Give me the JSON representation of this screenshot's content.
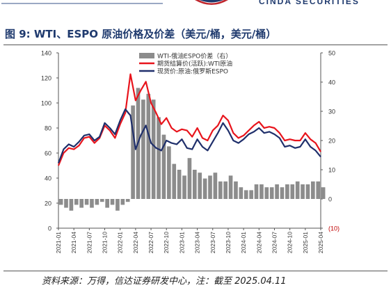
{
  "header": {
    "brand": "CINDA SECURITIES"
  },
  "figure": {
    "title": "图 9:  WTI、ESPO 原油价格及价差（美元/桶，美元/桶）"
  },
  "source": "资料来源：万得，信达证券研发中心，注：截至 2025.04.11",
  "chart_data": {
    "type": "line",
    "title": "",
    "x_range": [
      "2021-01",
      "2025-04"
    ],
    "x_tick_labels": [
      "2021-01",
      "2021-04",
      "2021-07",
      "2021-10",
      "2022-01",
      "2022-04",
      "2022-07",
      "2022-10",
      "2023-01",
      "2023-04",
      "2023-07",
      "2023-10",
      "2024-01",
      "2024-04",
      "2024-07",
      "2024-10",
      "2025-01",
      "2025-04"
    ],
    "ylim_left": [
      0,
      140
    ],
    "y_ticks_left": [
      0,
      20,
      40,
      60,
      80,
      100,
      120,
      140
    ],
    "ylim_right": [
      -10,
      50
    ],
    "y_ticks_right": [
      -10,
      0,
      10,
      20,
      30,
      40,
      50
    ],
    "y_tick_labels_right": [
      "(10)",
      "0",
      "10",
      "20",
      "30",
      "40",
      "50"
    ],
    "grid": false,
    "legend_position": "top-right",
    "series": [
      {
        "name": "WTI-俄油ESPO价差（右）",
        "type": "bar",
        "axis": "right",
        "color": "#8c8c8c",
        "x": [
          "2021-01",
          "2021-02",
          "2021-03",
          "2021-04",
          "2021-05",
          "2021-06",
          "2021-07",
          "2021-08",
          "2021-09",
          "2021-10",
          "2021-11",
          "2021-12",
          "2022-01",
          "2022-02",
          "2022-03",
          "2022-04",
          "2022-05",
          "2022-06",
          "2022-07",
          "2022-08",
          "2022-09",
          "2022-10",
          "2022-11",
          "2022-12",
          "2023-01",
          "2023-02",
          "2023-03",
          "2023-04",
          "2023-05",
          "2023-06",
          "2023-07",
          "2023-08",
          "2023-09",
          "2023-10",
          "2023-11",
          "2023-12",
          "2024-01",
          "2024-02",
          "2024-03",
          "2024-04",
          "2024-05",
          "2024-06",
          "2024-07",
          "2024-08",
          "2024-09",
          "2024-10",
          "2024-11",
          "2024-12",
          "2025-01",
          "2025-02",
          "2025-03",
          "2025-04"
        ],
        "values": [
          -2,
          -3,
          -4,
          -2,
          -3,
          -2,
          -3,
          -2,
          -1,
          -3,
          -2,
          -4,
          -2,
          -1,
          32,
          38,
          34,
          36,
          34,
          28,
          22,
          18,
          12,
          10,
          8,
          14,
          10,
          9,
          7,
          8,
          9,
          6,
          6,
          8,
          6,
          4,
          3,
          3,
          5,
          5,
          4,
          4,
          5,
          4,
          5,
          5,
          6,
          5,
          5,
          6,
          6,
          4
        ]
      },
      {
        "name": "期货结算价(活跃):WTI原油",
        "type": "line",
        "axis": "left",
        "color": "#e8141c",
        "x": [
          "2021-01",
          "2021-02",
          "2021-03",
          "2021-04",
          "2021-05",
          "2021-06",
          "2021-07",
          "2021-08",
          "2021-09",
          "2021-10",
          "2021-11",
          "2021-12",
          "2022-01",
          "2022-02",
          "2022-03",
          "2022-04",
          "2022-05",
          "2022-06",
          "2022-07",
          "2022-08",
          "2022-09",
          "2022-10",
          "2022-11",
          "2022-12",
          "2023-01",
          "2023-02",
          "2023-03",
          "2023-04",
          "2023-05",
          "2023-06",
          "2023-07",
          "2023-08",
          "2023-09",
          "2023-10",
          "2023-11",
          "2023-12",
          "2024-01",
          "2024-02",
          "2024-03",
          "2024-04",
          "2024-05",
          "2024-06",
          "2024-07",
          "2024-08",
          "2024-09",
          "2024-10",
          "2024-11",
          "2024-12",
          "2025-01",
          "2025-02",
          "2025-03",
          "2025-04"
        ],
        "values": [
          50,
          60,
          64,
          63,
          66,
          72,
          73,
          68,
          72,
          82,
          78,
          72,
          83,
          92,
          123,
          102,
          110,
          117,
          100,
          92,
          83,
          88,
          80,
          77,
          79,
          78,
          73,
          80,
          72,
          70,
          78,
          82,
          90,
          86,
          76,
          72,
          74,
          78,
          82,
          85,
          80,
          81,
          80,
          76,
          70,
          71,
          70,
          70,
          76,
          71,
          68,
          61
        ]
      },
      {
        "name": "现货价:原油:俄罗斯ESPO",
        "type": "line",
        "axis": "left",
        "color": "#1f2f6b",
        "x": [
          "2021-01",
          "2021-02",
          "2021-03",
          "2021-04",
          "2021-05",
          "2021-06",
          "2021-07",
          "2021-08",
          "2021-09",
          "2021-10",
          "2021-11",
          "2021-12",
          "2022-01",
          "2022-02",
          "2022-03",
          "2022-04",
          "2022-05",
          "2022-06",
          "2022-07",
          "2022-08",
          "2022-09",
          "2022-10",
          "2022-11",
          "2022-12",
          "2023-01",
          "2023-02",
          "2023-03",
          "2023-04",
          "2023-05",
          "2023-06",
          "2023-07",
          "2023-08",
          "2023-09",
          "2023-10",
          "2023-11",
          "2023-12",
          "2024-01",
          "2024-02",
          "2024-03",
          "2024-04",
          "2024-05",
          "2024-06",
          "2024-07",
          "2024-08",
          "2024-09",
          "2024-10",
          "2024-11",
          "2024-12",
          "2025-01",
          "2025-02",
          "2025-03",
          "2025-04"
        ],
        "values": [
          52,
          63,
          67,
          65,
          69,
          74,
          75,
          70,
          73,
          84,
          80,
          75,
          86,
          95,
          90,
          63,
          74,
          82,
          68,
          64,
          62,
          70,
          68,
          67,
          71,
          64,
          63,
          71,
          65,
          62,
          69,
          76,
          84,
          78,
          70,
          68,
          71,
          75,
          77,
          80,
          76,
          77,
          75,
          72,
          65,
          66,
          64,
          65,
          71,
          65,
          62,
          57
        ]
      }
    ]
  }
}
